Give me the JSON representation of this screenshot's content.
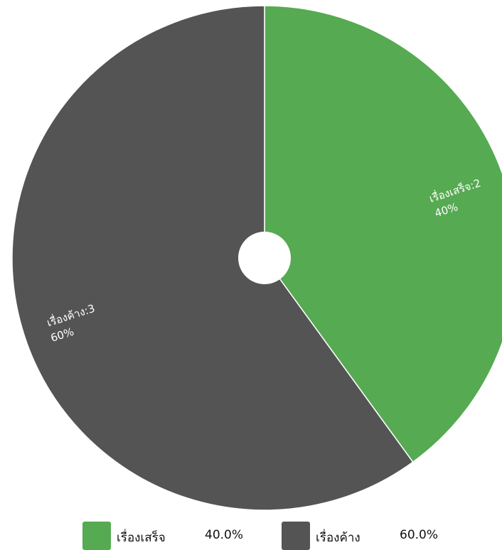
{
  "chart_data": {
    "type": "pie",
    "donut_hole": true,
    "slices": [
      {
        "name": "เรื่องเสร็จ",
        "value": 2,
        "percent": 40,
        "color": "#56aa52",
        "label_line1": "เรื่องเสร็จ:2",
        "label_line2": "40%",
        "legend_percent": "40.0%"
      },
      {
        "name": "เรื่องค้าง",
        "value": 3,
        "percent": 60,
        "color": "#545454",
        "label_line1": "เรื่องค้าง:3",
        "label_line2": "60%",
        "legend_percent": "60.0%"
      }
    ],
    "legend_position": "bottom"
  }
}
